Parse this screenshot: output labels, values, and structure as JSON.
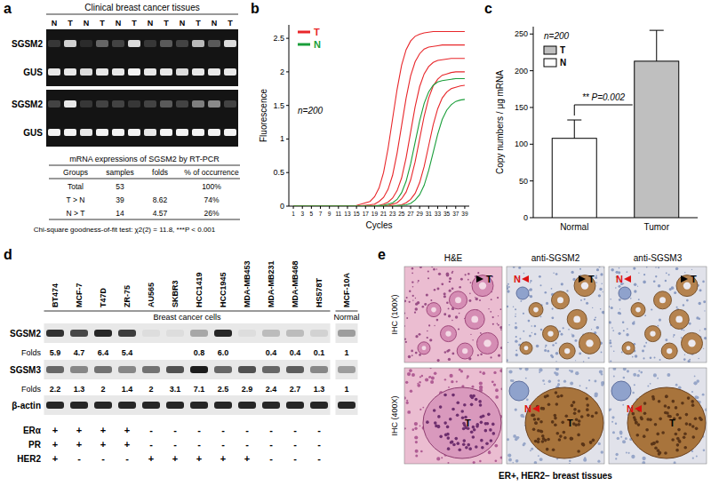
{
  "panel_labels": [
    "a",
    "b",
    "c",
    "d",
    "e"
  ],
  "panel_a": {
    "title": "Clinical breast cancer tissues",
    "lanes": [
      "N",
      "T",
      "N",
      "T",
      "N",
      "T",
      "N",
      "T",
      "N",
      "T",
      "N",
      "T"
    ],
    "gels": [
      {
        "rows": [
          {
            "label": "SGSM2",
            "band_intensity": [
              0.15,
              0.8,
              0.1,
              0.35,
              0.2,
              0.85,
              0.15,
              0.3,
              0.2,
              0.7,
              0.3,
              0.85
            ]
          },
          {
            "label": "GUS",
            "band_intensity": [
              0.9,
              0.9,
              0.85,
              0.9,
              0.9,
              0.95,
              0.9,
              0.9,
              0.85,
              0.9,
              0.9,
              0.9
            ]
          }
        ]
      },
      {
        "rows": [
          {
            "label": "SGSM2",
            "band_intensity": [
              0.2,
              0.9,
              0.15,
              0.2,
              0.2,
              0.15,
              0.2,
              0.3,
              0.2,
              0.45,
              0.5,
              0.2
            ]
          },
          {
            "label": "GUS",
            "band_intensity": [
              0.95,
              0.95,
              0.9,
              0.95,
              0.95,
              0.95,
              0.9,
              0.95,
              0.95,
              0.95,
              0.95,
              0.95
            ]
          }
        ]
      }
    ],
    "table": {
      "title": "mRNA expressions of SGSM2 by RT-PCR",
      "header": [
        "Groups",
        "samples",
        "folds",
        "% of occurrence"
      ],
      "rows": [
        [
          "Total",
          "53",
          null,
          "100%"
        ],
        [
          "T > N",
          "39",
          "8.62",
          "74%"
        ],
        [
          "N > T",
          "14",
          "4.57",
          "26%"
        ]
      ],
      "footnote": "Chi-square goodness-of-fit test: χ2(2) = 11.8, ***P < 0.001"
    }
  },
  "chart_data": [
    {
      "type": "line",
      "x_label": "Cycles",
      "y_label": "Fluorescence",
      "annotations": [
        "n=200"
      ],
      "legend": "upper left",
      "x": [
        1,
        15,
        18,
        19,
        20,
        21,
        22,
        23,
        24,
        25,
        26,
        27,
        28,
        29,
        30,
        31,
        32,
        33,
        34,
        35,
        36,
        37,
        38,
        39
      ],
      "series": [
        {
          "name": "T",
          "color": "#e8262a",
          "values": [
            0,
            0.01,
            0.07,
            0.14,
            0.27,
            0.5,
            0.86,
            1.3,
            1.74,
            2.1,
            2.33,
            2.46,
            2.53,
            2.56,
            2.58,
            2.59,
            2.6,
            2.6,
            2.6,
            2.6,
            2.6,
            2.6,
            2.6,
            2.6
          ]
        },
        {
          "name": "T",
          "color": "#e8262a",
          "values": [
            0,
            0,
            0.02,
            0.03,
            0.07,
            0.13,
            0.25,
            0.46,
            0.79,
            1.2,
            1.61,
            1.94,
            2.15,
            2.27,
            2.34,
            2.37,
            2.38,
            2.39,
            2.4,
            2.4,
            2.4,
            2.4,
            2.4,
            2.4
          ]
        },
        {
          "name": "T",
          "color": "#e8262a",
          "values": [
            0,
            0,
            0,
            0.01,
            0.01,
            0.03,
            0.06,
            0.12,
            0.23,
            0.42,
            0.72,
            1.1,
            1.48,
            1.78,
            1.97,
            2.08,
            2.14,
            2.17,
            2.18,
            2.19,
            2.2,
            2.2,
            2.2,
            2.2
          ]
        },
        {
          "name": "T",
          "color": "#e8262a",
          "values": [
            0,
            0,
            0,
            0,
            0,
            0.01,
            0.01,
            0.03,
            0.05,
            0.11,
            0.21,
            0.39,
            0.66,
            1.0,
            1.34,
            1.61,
            1.79,
            1.89,
            1.95,
            1.97,
            1.99,
            2.0,
            2.0,
            2.0
          ]
        },
        {
          "name": "T",
          "color": "#e8262a",
          "values": [
            0,
            0,
            0,
            0,
            0,
            0,
            0,
            0.01,
            0.01,
            0.02,
            0.05,
            0.1,
            0.19,
            0.35,
            0.59,
            0.9,
            1.21,
            1.45,
            1.61,
            1.7,
            1.75,
            1.77,
            1.79,
            1.8
          ]
        },
        {
          "name": "N",
          "color": "#1a9e3a",
          "values": [
            0,
            0,
            0,
            0,
            0.01,
            0.01,
            0.03,
            0.05,
            0.1,
            0.2,
            0.37,
            0.63,
            0.95,
            1.27,
            1.53,
            1.7,
            1.8,
            1.85,
            1.87,
            1.88,
            1.89,
            1.9,
            1.9,
            1.9
          ]
        },
        {
          "name": "N",
          "color": "#1a9e3a",
          "values": [
            0,
            0,
            0,
            0,
            0,
            0,
            0,
            0,
            0.01,
            0.01,
            0.02,
            0.04,
            0.09,
            0.17,
            0.31,
            0.53,
            0.8,
            1.07,
            1.29,
            1.43,
            1.51,
            1.56,
            1.58,
            1.59
          ]
        }
      ],
      "xlim": [
        0,
        40
      ],
      "ylim": [
        0,
        2.7
      ],
      "xticks": [
        1,
        3,
        5,
        7,
        9,
        11,
        13,
        15,
        17,
        19,
        21,
        23,
        25,
        27,
        29,
        31,
        33,
        35,
        37,
        39
      ],
      "yticks": [
        0,
        0.5,
        1,
        1.5,
        2,
        2.5
      ]
    },
    {
      "type": "bar",
      "y_label": "Copy numbers / μg mRNA",
      "annotations": [
        "n=200",
        "** P=0.002"
      ],
      "legend": "upper left",
      "categories": [
        "Normal",
        "Tumor"
      ],
      "series": [
        {
          "name": "T",
          "color": "#bfbfbf",
          "values": [
            null,
            213
          ],
          "errors": [
            null,
            42
          ]
        },
        {
          "name": "N",
          "color": "#ffffff",
          "values": [
            108,
            null
          ],
          "errors": [
            25,
            null
          ]
        }
      ],
      "ylim": [
        0,
        260
      ],
      "yticks": [
        0,
        50,
        100,
        150,
        200,
        250
      ]
    }
  ],
  "panel_d": {
    "cell_lines": [
      "BT474",
      "MCF-7",
      "T47D",
      "ZR-75",
      "AU565",
      "SKBR3",
      "HCC1419",
      "HCC1945",
      "MDA-MB453",
      "MDA-MB231",
      "MDA-MB468",
      "HS578T",
      "MCF-10A"
    ],
    "groups": [
      {
        "label": "Breast cancer cells",
        "count": 12
      },
      {
        "label": "Normal",
        "count": 1
      }
    ],
    "blots": [
      {
        "label": "SGSM2",
        "band_intensity": [
          0.85,
          0.75,
          0.9,
          0.8,
          0.05,
          0.05,
          0.3,
          0.9,
          0.05,
          0.2,
          0.2,
          0.1,
          0.35
        ],
        "folds_label": "Folds",
        "folds": [
          "5.9",
          "4.7",
          "6.4",
          "5.4",
          null,
          null,
          "0.8",
          "6.0",
          null,
          "0.4",
          "0.4",
          "0.1",
          "1"
        ]
      },
      {
        "label": "SGSM3",
        "band_intensity": [
          0.6,
          0.45,
          0.55,
          0.45,
          0.55,
          0.7,
          0.95,
          0.6,
          0.7,
          0.6,
          0.65,
          0.45,
          0.35
        ],
        "folds_label": "Folds",
        "folds": [
          "2.2",
          "1.3",
          "2",
          "1.4",
          "2",
          "3.1",
          "7.1",
          "2.5",
          "2.9",
          "2.4",
          "2.7",
          "1.3",
          "1"
        ]
      },
      {
        "label": "β-actin",
        "band_intensity": [
          0.9,
          0.9,
          0.9,
          0.9,
          0.9,
          0.9,
          0.9,
          0.9,
          0.9,
          0.9,
          0.9,
          0.9,
          0.9
        ]
      }
    ],
    "receptors": [
      {
        "label": "ERα",
        "status": [
          "+",
          "+",
          "+",
          "+",
          "-",
          "-",
          "-",
          "-",
          "-",
          "-",
          "-",
          "-",
          null
        ]
      },
      {
        "label": "PR",
        "status": [
          "+",
          "+",
          "+",
          "+",
          "-",
          "-",
          "-",
          "-",
          "-",
          "-",
          "-",
          "-",
          null
        ]
      },
      {
        "label": "HER2",
        "status": [
          "+",
          "-",
          "-",
          "-",
          "+",
          "+",
          "+",
          "+",
          "+",
          "-",
          "-",
          "-",
          null
        ]
      }
    ]
  },
  "panel_e": {
    "columns": [
      "H&E",
      "anti-SGSM2",
      "anti-SGSM3"
    ],
    "rows": [
      "IHC (100X)",
      "IHC (400X)"
    ],
    "images": [
      [
        [
          "T"
        ],
        [
          "N",
          "T"
        ],
        [
          "N",
          "T"
        ]
      ],
      [
        [
          "T"
        ],
        [
          "N",
          "T"
        ],
        [
          "N",
          "T"
        ]
      ]
    ],
    "caption": "ER+, HER2− breast tissues"
  }
}
